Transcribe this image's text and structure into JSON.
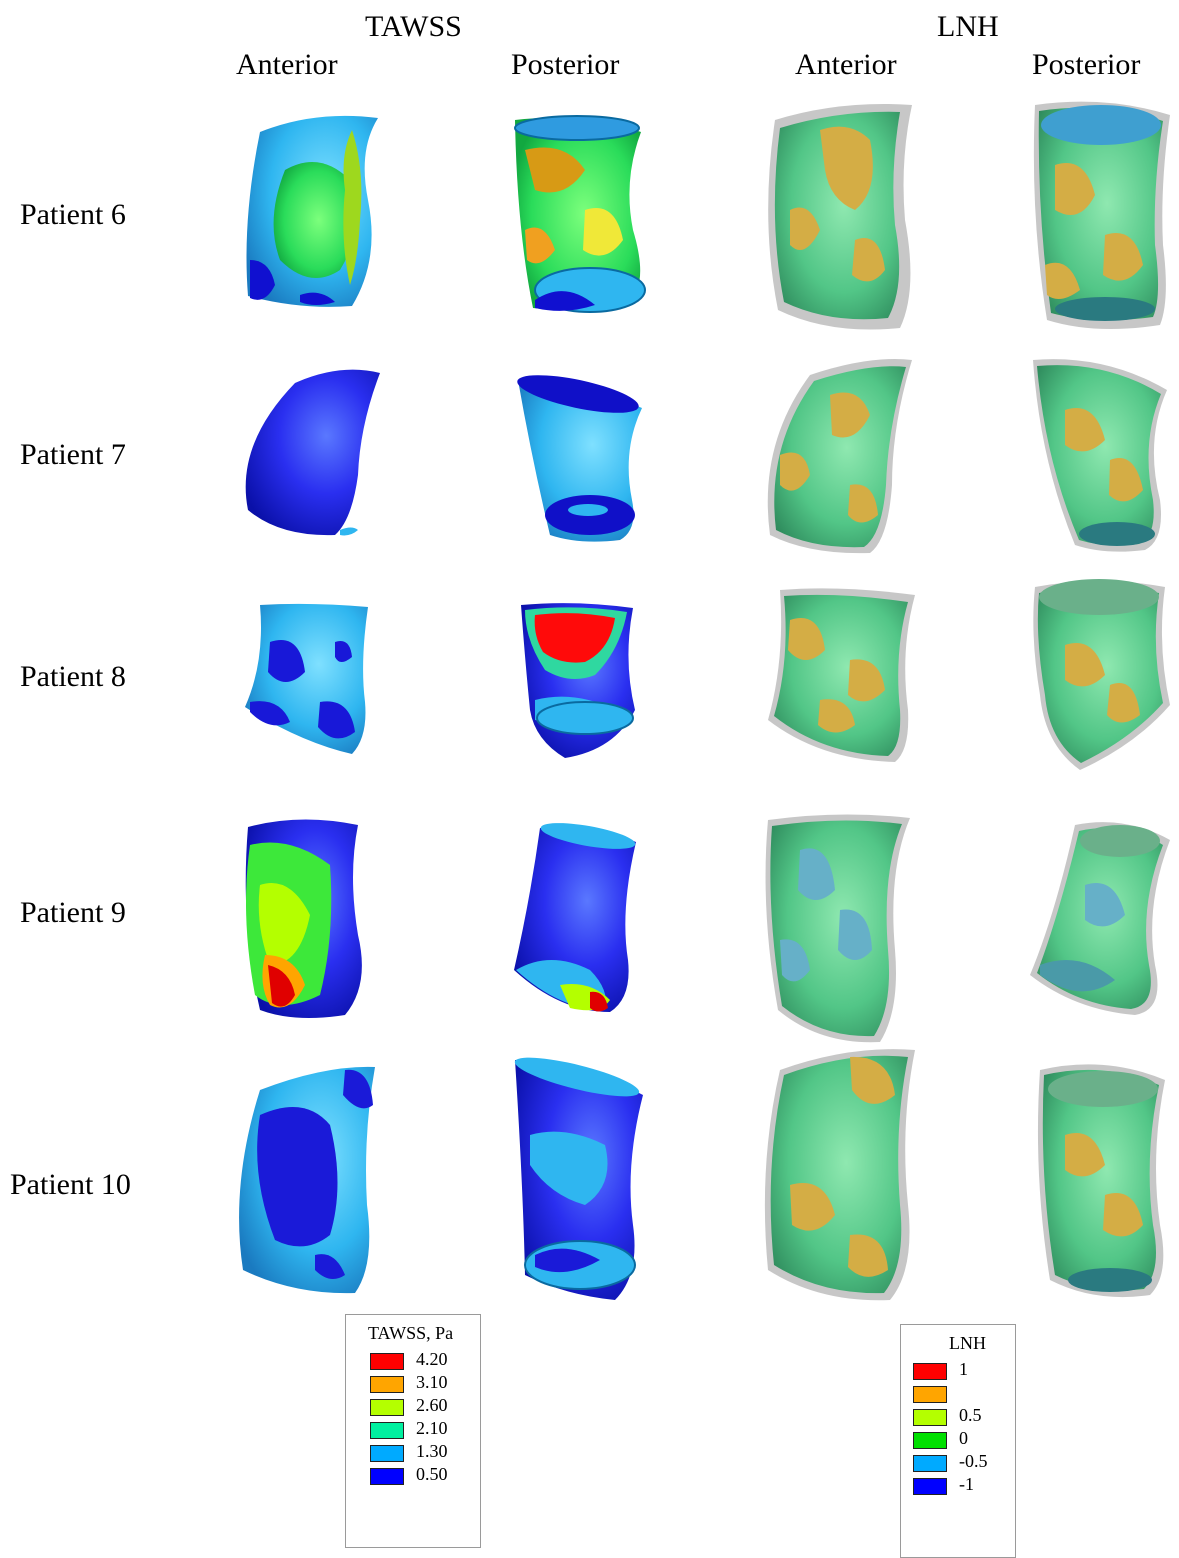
{
  "headers": {
    "tawss": "TAWSS",
    "lnh": "LNH",
    "tawss_anterior": "Anterior",
    "tawss_posterior": "Posterior",
    "lnh_anterior": "Anterior",
    "lnh_posterior": "Posterior"
  },
  "patients": [
    "Patient 6",
    "Patient 7",
    "Patient 8",
    "Patient 9",
    "Patient 10"
  ],
  "legend_tawss": {
    "title": "TAWSS, Pa",
    "levels": [
      {
        "label": "4.20",
        "color": "#ff0000"
      },
      {
        "label": "3.10",
        "color": "#ffa500"
      },
      {
        "label": "2.60",
        "color": "#b4ff00"
      },
      {
        "label": "2.10",
        "color": "#00f0a0"
      },
      {
        "label": "1.30",
        "color": "#00aaff"
      },
      {
        "label": "0.50",
        "color": "#0000ff"
      }
    ]
  },
  "legend_lnh": {
    "title": "LNH",
    "levels": [
      {
        "label": "1",
        "color": "#ff0000"
      },
      {
        "label": "",
        "color": "#ffa500"
      },
      {
        "label": "0.5",
        "color": "#b4ff00"
      },
      {
        "label": "0",
        "color": "#00e000"
      },
      {
        "label": "-0.5",
        "color": "#00aaff"
      },
      {
        "label": "-1",
        "color": "#0000ff"
      }
    ]
  }
}
